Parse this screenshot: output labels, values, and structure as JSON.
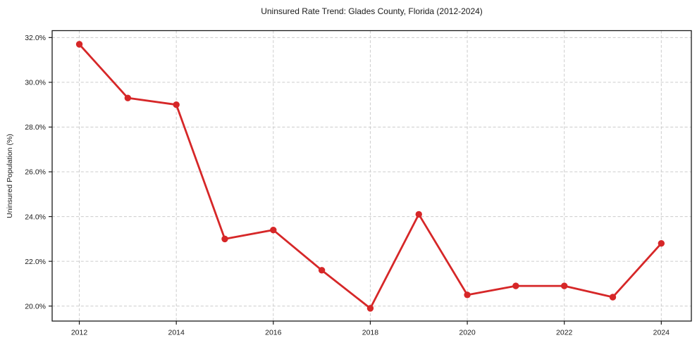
{
  "chart_data": {
    "type": "line",
    "title": "Uninsured Rate Trend: Glades County, Florida (2012-2024)",
    "xlabel": "",
    "ylabel": "Uninsured Population (%)",
    "x": [
      2012,
      2013,
      2014,
      2015,
      2016,
      2017,
      2018,
      2019,
      2020,
      2021,
      2022,
      2023,
      2024
    ],
    "values": [
      31.7,
      29.3,
      29.0,
      23.0,
      23.4,
      21.6,
      19.9,
      24.1,
      20.5,
      20.9,
      20.9,
      20.4,
      22.8
    ],
    "xlim": [
      2011.44,
      2024.62
    ],
    "ylim": [
      19.33,
      32.31
    ],
    "x_ticks": [
      2012,
      2014,
      2016,
      2018,
      2020,
      2022,
      2024
    ],
    "x_tick_labels": [
      "2012",
      "2014",
      "2016",
      "2018",
      "2020",
      "2022",
      "2024"
    ],
    "y_ticks": [
      20,
      22,
      24,
      26,
      28,
      30,
      32
    ],
    "y_tick_labels": [
      "20.0%",
      "22.0%",
      "24.0%",
      "26.0%",
      "28.0%",
      "30.0%",
      "32.0%"
    ],
    "grid": "both, dashed",
    "legend": "none",
    "colors": {
      "line": "#d62728",
      "marker": "#d62728",
      "grid": "#cccccc",
      "axis": "#1a1a1a",
      "background": "#ffffff"
    }
  }
}
